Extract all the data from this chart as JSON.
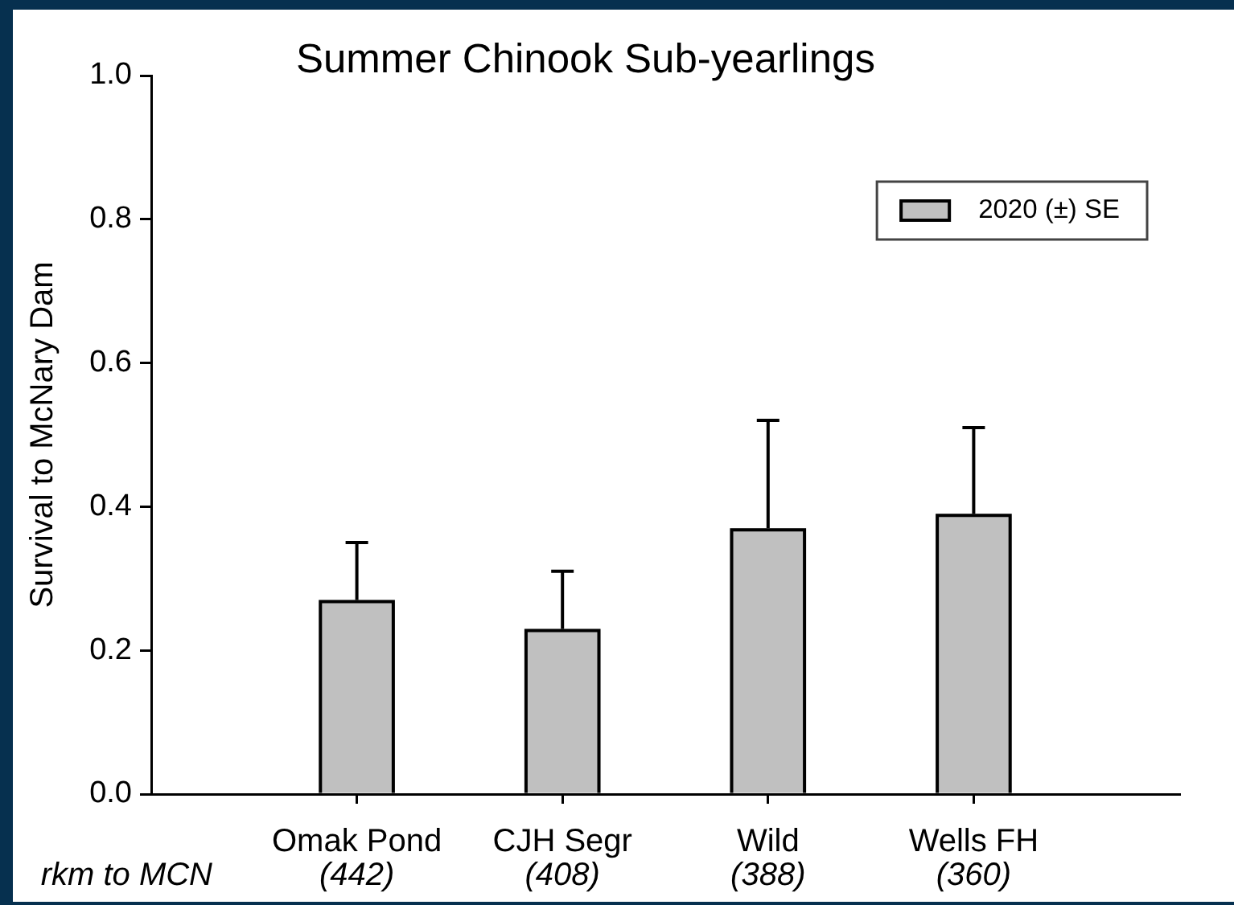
{
  "chart_data": {
    "type": "bar",
    "title": "Summer Chinook Sub-yearlings",
    "ylabel": "Survival to McNary Dam",
    "categories": [
      "Omak Pond\n(442)",
      "CJH Segr\n(408)",
      "Wild\n(388)",
      "Wells FH\n(360)"
    ],
    "series": [
      {
        "name": "2020 (±) SE",
        "color": "#c0c0c0",
        "values": [
          0.27,
          0.23,
          0.37,
          0.39
        ],
        "errors": [
          [
            0.27,
            0.35
          ],
          [
            0.23,
            0.31
          ],
          [
            0.37,
            0.52
          ],
          [
            0.39,
            0.51
          ]
        ]
      }
    ],
    "ylim": [
      0,
      1
    ],
    "yticks": [
      {
        "value": 0,
        "label": "0.0"
      },
      0.2,
      0.4,
      0.6,
      0.8,
      {
        "value": 1,
        "label": "1.0"
      }
    ],
    "legend": "top right",
    "annotations": [
      "rkm to MCN"
    ]
  }
}
